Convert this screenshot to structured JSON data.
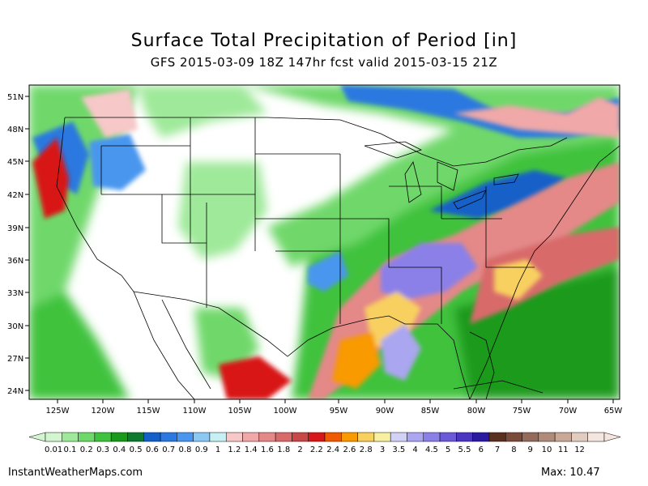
{
  "header": {
    "title": "Surface Total Precipitation of Period [in]",
    "subtitle": "GFS 2015-03-09 18Z 147hr fcst valid 2015-03-15 21Z"
  },
  "map": {
    "lat_ticks": [
      "51N",
      "48N",
      "45N",
      "42N",
      "39N",
      "36N",
      "33N",
      "30N",
      "27N",
      "24N"
    ],
    "lon_ticks": [
      "125W",
      "120W",
      "115W",
      "110W",
      "105W",
      "100W",
      "95W",
      "90W",
      "85W",
      "80W",
      "75W",
      "70W",
      "65W"
    ]
  },
  "colorbar": {
    "labels": [
      "0.01",
      "0.1",
      "0.2",
      "0.3",
      "0.4",
      "0.5",
      "0.6",
      "0.7",
      "0.8",
      "0.9",
      "1",
      "1.2",
      "1.4",
      "1.6",
      "1.8",
      "2",
      "2.2",
      "2.4",
      "2.6",
      "2.8",
      "3",
      "3.5",
      "4",
      "4.5",
      "5",
      "5.5",
      "6",
      "7",
      "8",
      "9",
      "10",
      "11",
      "12"
    ],
    "colors": [
      "#d3f5d0",
      "#9fe99a",
      "#6fd86b",
      "#3fc23d",
      "#1a9a1a",
      "#0f7a2f",
      "#1460c8",
      "#2a78e0",
      "#4a96ee",
      "#8cc8f4",
      "#c6f0f4",
      "#f6c8c8",
      "#f0a8a8",
      "#e48888",
      "#d86a6a",
      "#c84848",
      "#d81818",
      "#f05a00",
      "#f89a00",
      "#f8d060",
      "#f8f0a0",
      "#d2d2f6",
      "#aaa6f0",
      "#8a80e8",
      "#6a5ad8",
      "#4a36c0",
      "#2a1aa0",
      "#5a3020",
      "#7a4a3a",
      "#946a5a",
      "#b08a7a",
      "#caa898",
      "#e2ccc0",
      "#f4e6de"
    ]
  },
  "footer": {
    "site": "InstantWeatherMaps.com",
    "max_label": "Max: 10.47"
  }
}
